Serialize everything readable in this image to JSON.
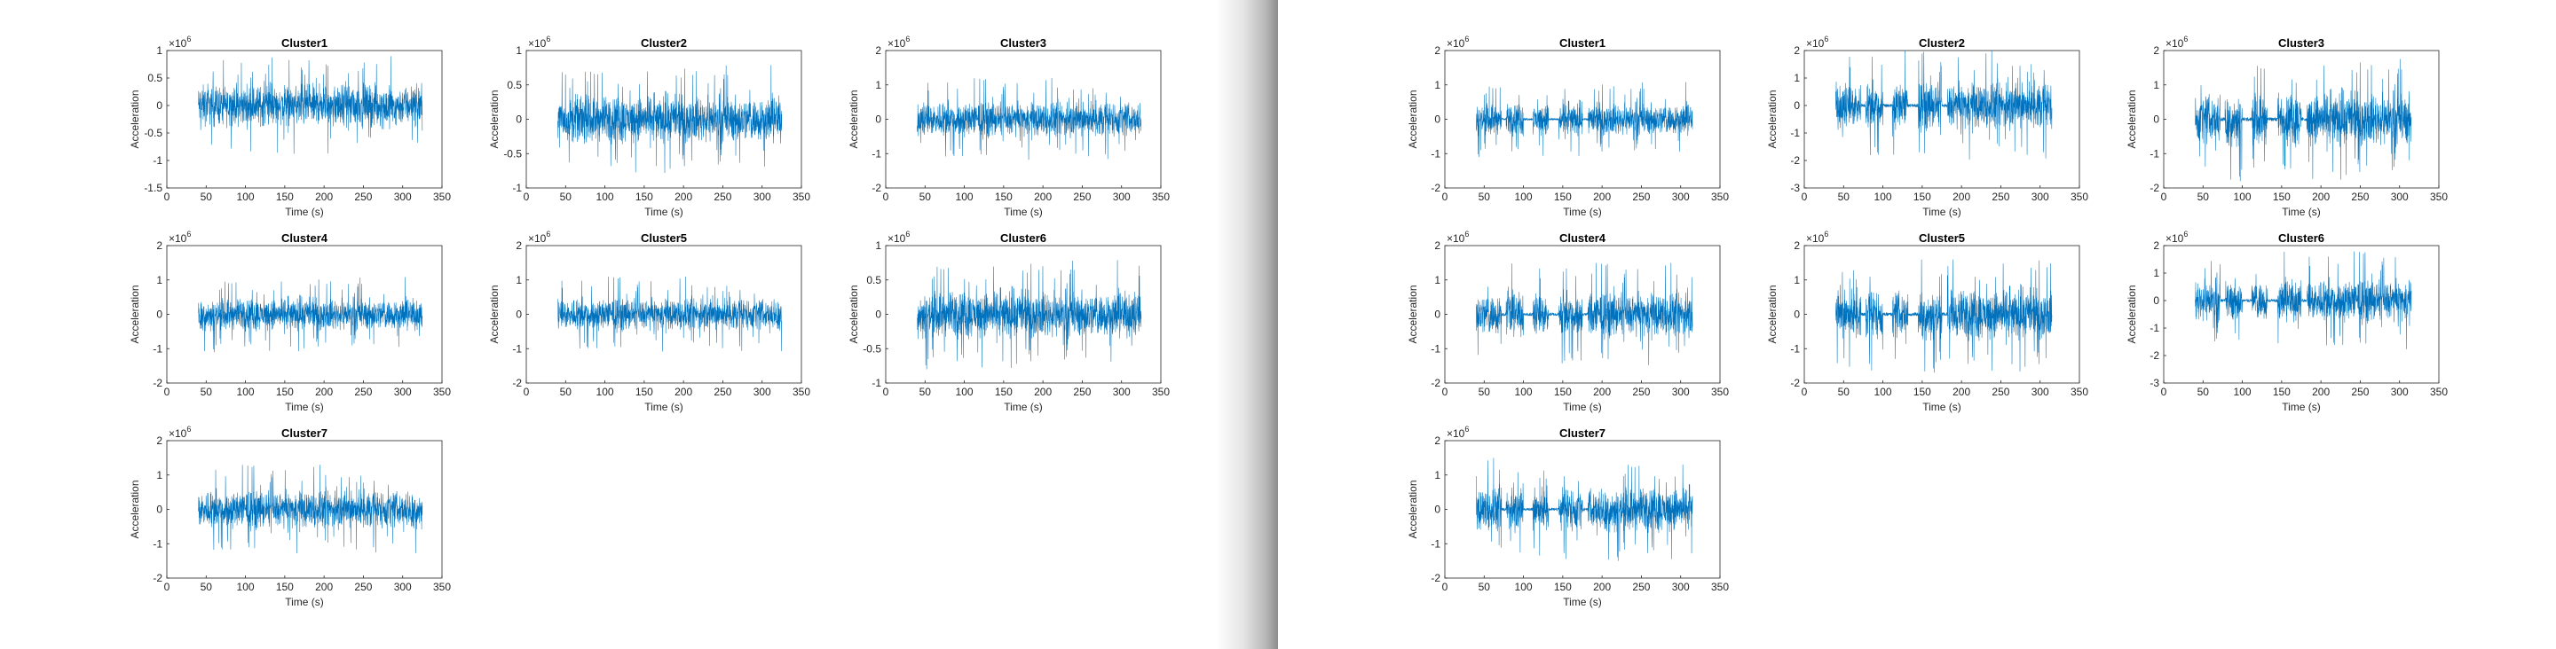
{
  "colors": {
    "signal": "#0072bd",
    "axes": "#262626",
    "background": "#ffffff"
  },
  "chart_data": [
    {
      "panel": "left",
      "type": "line",
      "title": "Cluster1",
      "xlabel": "Time (s)",
      "ylabel": "Acceleration",
      "exponent": "×10^6",
      "xlim": [
        0,
        350
      ],
      "ylim": [
        -1.5,
        1
      ],
      "xticks": [
        "0",
        "50",
        "100",
        "150",
        "200",
        "250",
        "300",
        "350"
      ],
      "yticks": [
        "-1.5",
        "-1",
        "-0.5",
        "0",
        "0.5",
        "1"
      ],
      "signal": {
        "x": [
          40,
          325
        ],
        "envelope": [
          -0.6,
          0.9
        ],
        "gaps": []
      }
    },
    {
      "panel": "left",
      "type": "line",
      "title": "Cluster2",
      "xlabel": "Time (s)",
      "ylabel": "Acceleration",
      "exponent": "×10^6",
      "xlim": [
        0,
        350
      ],
      "ylim": [
        -1,
        1
      ],
      "xticks": [
        "0",
        "50",
        "100",
        "150",
        "200",
        "250",
        "300",
        "350"
      ],
      "yticks": [
        "-1",
        "-0.5",
        "0",
        "0.5",
        "1"
      ],
      "signal": {
        "x": [
          40,
          325
        ],
        "envelope": [
          -0.8,
          0.8
        ],
        "gaps": []
      }
    },
    {
      "panel": "left",
      "type": "line",
      "title": "Cluster3",
      "xlabel": "Time (s)",
      "ylabel": "Acceleration",
      "exponent": "×10^6",
      "xlim": [
        0,
        350
      ],
      "ylim": [
        -2,
        2
      ],
      "xticks": [
        "0",
        "50",
        "100",
        "150",
        "200",
        "250",
        "300",
        "350"
      ],
      "yticks": [
        "-2",
        "-1",
        "0",
        "1",
        "2"
      ],
      "signal": {
        "x": [
          40,
          325
        ],
        "envelope": [
          -1.2,
          1.2
        ],
        "gaps": []
      }
    },
    {
      "panel": "left",
      "type": "line",
      "title": "Cluster4",
      "xlabel": "Time (s)",
      "ylabel": "Acceleration",
      "exponent": "×10^6",
      "xlim": [
        0,
        350
      ],
      "ylim": [
        -2,
        2
      ],
      "xticks": [
        "0",
        "50",
        "100",
        "150",
        "200",
        "250",
        "300",
        "350"
      ],
      "yticks": [
        "-2",
        "-1",
        "0",
        "1",
        "2"
      ],
      "signal": {
        "x": [
          40,
          325
        ],
        "envelope": [
          -1.1,
          1.1
        ],
        "gaps": []
      }
    },
    {
      "panel": "left",
      "type": "line",
      "title": "Cluster5",
      "xlabel": "Time (s)",
      "ylabel": "Acceleration",
      "exponent": "×10^6",
      "xlim": [
        0,
        350
      ],
      "ylim": [
        -2,
        2
      ],
      "xticks": [
        "0",
        "50",
        "100",
        "150",
        "200",
        "250",
        "300",
        "350"
      ],
      "yticks": [
        "-2",
        "-1",
        "0",
        "1",
        "2"
      ],
      "signal": {
        "x": [
          40,
          325
        ],
        "envelope": [
          -1.1,
          1.1
        ],
        "gaps": []
      }
    },
    {
      "panel": "left",
      "type": "line",
      "title": "Cluster6",
      "xlabel": "Time (s)",
      "ylabel": "Acceleration",
      "exponent": "×10^6",
      "xlim": [
        0,
        350
      ],
      "ylim": [
        -1,
        1
      ],
      "xticks": [
        "0",
        "50",
        "100",
        "150",
        "200",
        "250",
        "300",
        "350"
      ],
      "yticks": [
        "-1",
        "-0.5",
        "0",
        "0.5",
        "1"
      ],
      "signal": {
        "x": [
          40,
          325
        ],
        "envelope": [
          -0.8,
          0.8
        ],
        "gaps": []
      }
    },
    {
      "panel": "left",
      "type": "line",
      "title": "Cluster7",
      "xlabel": "Time (s)",
      "ylabel": "Acceleration",
      "exponent": "×10^6",
      "xlim": [
        0,
        350
      ],
      "ylim": [
        -2,
        2
      ],
      "xticks": [
        "0",
        "50",
        "100",
        "150",
        "200",
        "250",
        "300",
        "350"
      ],
      "yticks": [
        "-2",
        "-1",
        "0",
        "1",
        "2"
      ],
      "signal": {
        "x": [
          40,
          325
        ],
        "envelope": [
          -1.3,
          1.3
        ],
        "gaps": []
      }
    },
    {
      "panel": "right",
      "type": "line",
      "title": "Cluster1",
      "xlabel": "Time (s)",
      "ylabel": "Acceleration",
      "exponent": "×10^6",
      "xlim": [
        0,
        350
      ],
      "ylim": [
        -2,
        2
      ],
      "xticks": [
        "0",
        "50",
        "100",
        "150",
        "200",
        "250",
        "300",
        "350"
      ],
      "yticks": [
        "-2",
        "-1",
        "0",
        "1",
        "2"
      ],
      "signal": {
        "x": [
          40,
          315
        ],
        "envelope": [
          -1.1,
          1.1
        ],
        "gaps": [
          [
            72,
            78
          ],
          [
            100,
            112
          ],
          [
            132,
            145
          ],
          [
            175,
            182
          ]
        ]
      }
    },
    {
      "panel": "right",
      "type": "line",
      "title": "Cluster2",
      "xlabel": "Time (s)",
      "ylabel": "Acceleration",
      "exponent": "×10^6",
      "xlim": [
        0,
        350
      ],
      "ylim": [
        -3,
        2
      ],
      "xticks": [
        "0",
        "50",
        "100",
        "150",
        "200",
        "250",
        "300",
        "350"
      ],
      "yticks": [
        "-3",
        "-2",
        "-1",
        "0",
        "1",
        "2"
      ],
      "signal": {
        "x": [
          40,
          315
        ],
        "envelope": [
          -2.0,
          2.0
        ],
        "gaps": [
          [
            72,
            78
          ],
          [
            100,
            112
          ],
          [
            132,
            145
          ],
          [
            175,
            182
          ]
        ]
      }
    },
    {
      "panel": "right",
      "type": "line",
      "title": "Cluster3",
      "xlabel": "Time (s)",
      "ylabel": "Acceleration",
      "exponent": "×10^6",
      "xlim": [
        0,
        350
      ],
      "ylim": [
        -2,
        2
      ],
      "xticks": [
        "0",
        "50",
        "100",
        "150",
        "200",
        "250",
        "300",
        "350"
      ],
      "yticks": [
        "-2",
        "-1",
        "0",
        "1",
        "2"
      ],
      "signal": {
        "x": [
          40,
          315
        ],
        "envelope": [
          -1.8,
          1.8
        ],
        "gaps": [
          [
            72,
            78
          ],
          [
            100,
            112
          ],
          [
            132,
            145
          ],
          [
            175,
            182
          ]
        ]
      }
    },
    {
      "panel": "right",
      "type": "line",
      "title": "Cluster4",
      "xlabel": "Time (s)",
      "ylabel": "Acceleration",
      "exponent": "×10^6",
      "xlim": [
        0,
        350
      ],
      "ylim": [
        -2,
        2
      ],
      "xticks": [
        "0",
        "50",
        "100",
        "150",
        "200",
        "250",
        "300",
        "350"
      ],
      "yticks": [
        "-2",
        "-1",
        "0",
        "1",
        "2"
      ],
      "signal": {
        "x": [
          40,
          315
        ],
        "envelope": [
          -1.5,
          1.5
        ],
        "gaps": [
          [
            72,
            78
          ],
          [
            100,
            112
          ],
          [
            132,
            145
          ],
          [
            175,
            182
          ]
        ]
      }
    },
    {
      "panel": "right",
      "type": "line",
      "title": "Cluster5",
      "xlabel": "Time (s)",
      "ylabel": "Acceleration",
      "exponent": "×10^6",
      "xlim": [
        0,
        350
      ],
      "ylim": [
        -2,
        2
      ],
      "xticks": [
        "0",
        "50",
        "100",
        "150",
        "200",
        "250",
        "300",
        "350"
      ],
      "yticks": [
        "-2",
        "-1",
        "0",
        "1",
        "2"
      ],
      "signal": {
        "x": [
          40,
          315
        ],
        "envelope": [
          -1.7,
          1.7
        ],
        "gaps": [
          [
            72,
            78
          ],
          [
            100,
            112
          ],
          [
            132,
            145
          ],
          [
            175,
            182
          ]
        ]
      }
    },
    {
      "panel": "right",
      "type": "line",
      "title": "Cluster6",
      "xlabel": "Time (s)",
      "ylabel": "Acceleration",
      "exponent": "×10^6",
      "xlim": [
        0,
        350
      ],
      "ylim": [
        -3,
        2
      ],
      "xticks": [
        "0",
        "50",
        "100",
        "150",
        "200",
        "250",
        "300",
        "350"
      ],
      "yticks": [
        "-3",
        "-2",
        "-1",
        "0",
        "1",
        "2"
      ],
      "signal": {
        "x": [
          40,
          315
        ],
        "envelope": [
          -1.8,
          1.8
        ],
        "gaps": [
          [
            72,
            78
          ],
          [
            100,
            112
          ],
          [
            132,
            145
          ],
          [
            175,
            182
          ]
        ]
      }
    },
    {
      "panel": "right",
      "type": "line",
      "title": "Cluster7",
      "xlabel": "Time (s)",
      "ylabel": "Acceleration",
      "exponent": "×10^6",
      "xlim": [
        0,
        350
      ],
      "ylim": [
        -2,
        2
      ],
      "xticks": [
        "0",
        "50",
        "100",
        "150",
        "200",
        "250",
        "300",
        "350"
      ],
      "yticks": [
        "-2",
        "-1",
        "0",
        "1",
        "2"
      ],
      "signal": {
        "x": [
          40,
          315
        ],
        "envelope": [
          -1.5,
          1.5
        ],
        "gaps": [
          [
            72,
            78
          ],
          [
            100,
            112
          ],
          [
            132,
            145
          ],
          [
            175,
            182
          ]
        ]
      }
    }
  ]
}
